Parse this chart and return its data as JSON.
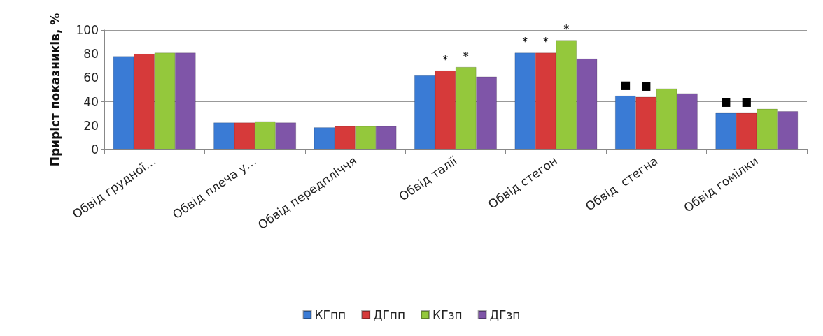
{
  "chart_data": {
    "type": "bar",
    "ylabel": "Приріст показників, %",
    "categories": [
      "Обвід грудної…",
      "Обвід плеча у…",
      "Обвід передпліччя",
      "Обвід талії",
      "Обвід стегон",
      "Обвід  стегна",
      "Обвід гомілки"
    ],
    "series": [
      {
        "name": "КГпп",
        "color": "#3a7bd5",
        "values": [
          78,
          22.5,
          18.5,
          62,
          81,
          45,
          30.5
        ]
      },
      {
        "name": "ДГпп",
        "color": "#d63a3a",
        "values": [
          80,
          22.5,
          19.5,
          66,
          81,
          44,
          30.5
        ]
      },
      {
        "name": "КГзп",
        "color": "#94c83c",
        "values": [
          81,
          23.5,
          19.5,
          69,
          91.5,
          51,
          34
        ]
      },
      {
        "name": "ДГзп",
        "color": "#7f55a8",
        "values": [
          81,
          22.5,
          19.5,
          61,
          76,
          47,
          32
        ]
      }
    ],
    "ylim": [
      0,
      100
    ],
    "yticks": [
      0,
      20,
      40,
      60,
      80,
      100
    ],
    "grid": "y",
    "legend": "bottom",
    "annotations": [
      {
        "text": "*",
        "x": "Обвід талії",
        "y": 66
      },
      {
        "text": "*",
        "x": "Обвід талії",
        "y": 69
      },
      {
        "text": "*",
        "x": "Обвід стегон",
        "y": 81
      },
      {
        "text": "*",
        "x": "Обвід стегон",
        "y": 81
      },
      {
        "text": "*",
        "x": "Обвід стегон",
        "y": 91.5
      },
      {
        "text": "■",
        "x": "Обвід  стегна",
        "y": 45
      },
      {
        "text": "■",
        "x": "Обвід  стегна",
        "y": 44
      },
      {
        "text": "■",
        "x": "Обвід гомілки",
        "y": 30.5
      },
      {
        "text": "■",
        "x": "Обвід гомілки",
        "y": 30.5
      }
    ]
  }
}
